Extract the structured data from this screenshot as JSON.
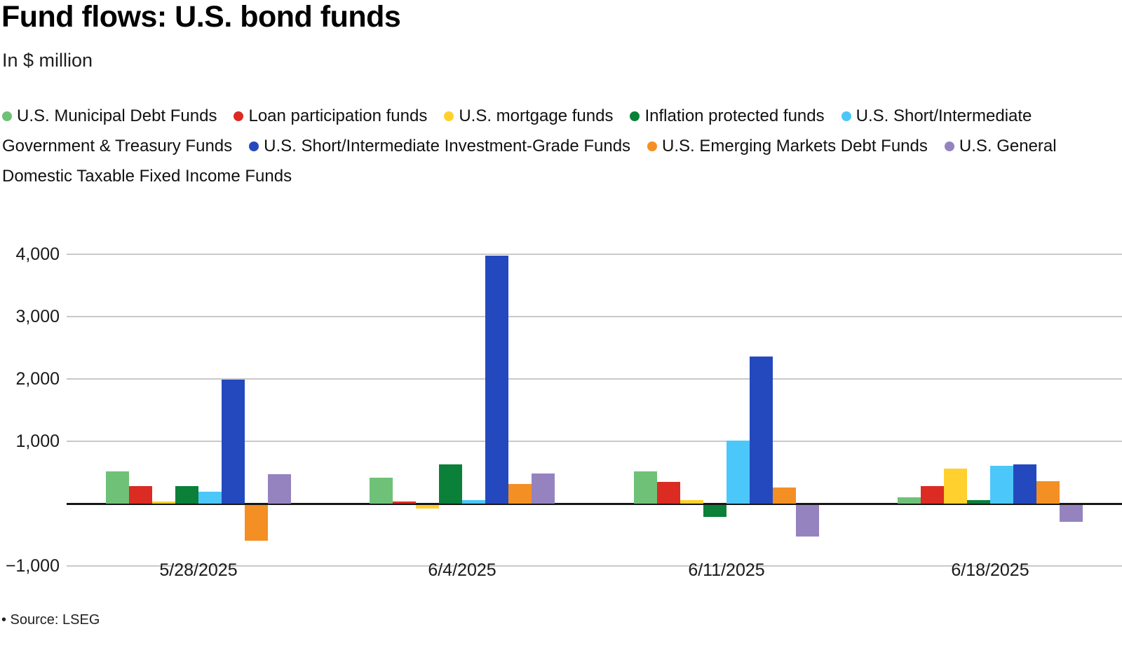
{
  "chart_data": {
    "type": "bar",
    "title": "Fund flows: U.S. bond funds",
    "subtitle": "In $ million",
    "source": "• Source: LSEG",
    "legend_position": "top",
    "grid": "horizontal gridlines every 1000, no 0 label, black zero axis line",
    "ylim": [
      -1080,
      4260
    ],
    "categories": [
      "5/28/2025",
      "6/4/2025",
      "6/11/2025",
      "6/18/2025"
    ],
    "yticks": [
      {
        "label": "4,000",
        "value": 4000
      },
      {
        "label": "3,000",
        "value": 3000
      },
      {
        "label": "2,000",
        "value": 2000
      },
      {
        "label": "1,000",
        "value": 1000
      },
      {
        "label": "−1,000",
        "value": -1000
      }
    ],
    "series": [
      {
        "name": "U.S. Municipal Debt Funds",
        "color": "#6FC177",
        "values": [
          520,
          420,
          515,
          100
        ]
      },
      {
        "name": "Loan participation funds",
        "color": "#DB2B23",
        "values": [
          280,
          35,
          350,
          280
        ]
      },
      {
        "name": "U.S. mortgage funds",
        "color": "#FFD02E",
        "values": [
          35,
          -55,
          55,
          560
        ]
      },
      {
        "name": "Inflation protected funds",
        "color": "#0A8039",
        "values": [
          280,
          630,
          -190,
          55
        ]
      },
      {
        "name": "U.S. Short/Intermediate Government & Treasury Funds",
        "color": "#4CC7FA",
        "values": [
          190,
          55,
          1010,
          605
        ]
      },
      {
        "name": "U.S. Short/Intermediate Investment-Grade Funds",
        "color": "#2449BE",
        "values": [
          1990,
          3975,
          2360,
          630
        ]
      },
      {
        "name": "U.S. Emerging Markets Debt Funds",
        "color": "#F48F24",
        "values": [
          -570,
          315,
          260,
          360
        ]
      },
      {
        "name": "U.S. General Domestic Taxable Fixed Income Funds",
        "color": "#9583BF",
        "values": [
          470,
          480,
          -505,
          -265
        ]
      }
    ],
    "grid_color": "#C9C9C9",
    "axis_color": "#161616"
  }
}
